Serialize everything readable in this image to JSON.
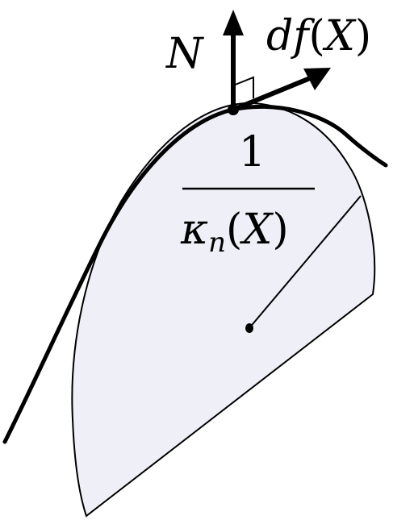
{
  "figure": {
    "labels": {
      "normal": "N",
      "differential": {
        "prefix": "df",
        "open": "(",
        "var": "X",
        "close": ")"
      },
      "fraction": {
        "numerator": "1",
        "kappa": "κ",
        "subscript": "n",
        "open": "(",
        "var": "X",
        "close": ")"
      }
    },
    "colors": {
      "disk_fill": "#efeff8",
      "stroke": "#000000",
      "background": "#ffffff"
    },
    "icons": {
      "right_angle_marker": "right-angle-icon",
      "arrowheads": "arrow-head-icon",
      "point": "dot-icon"
    }
  }
}
